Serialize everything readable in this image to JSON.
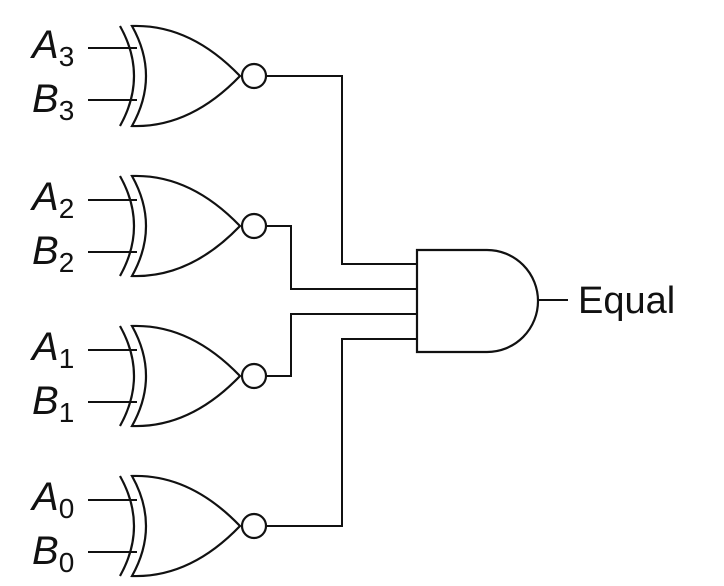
{
  "inputs": [
    {
      "a_letter": "A",
      "a_sub": "3",
      "b_letter": "B",
      "b_sub": "3"
    },
    {
      "a_letter": "A",
      "a_sub": "2",
      "b_letter": "B",
      "b_sub": "2"
    },
    {
      "a_letter": "A",
      "a_sub": "1",
      "b_letter": "B",
      "b_sub": "1"
    },
    {
      "a_letter": "A",
      "a_sub": "0",
      "b_letter": "B",
      "b_sub": "0"
    }
  ],
  "output": {
    "label": "Equal"
  },
  "gates": {
    "comparators": "XNOR",
    "combiner": "AND"
  }
}
